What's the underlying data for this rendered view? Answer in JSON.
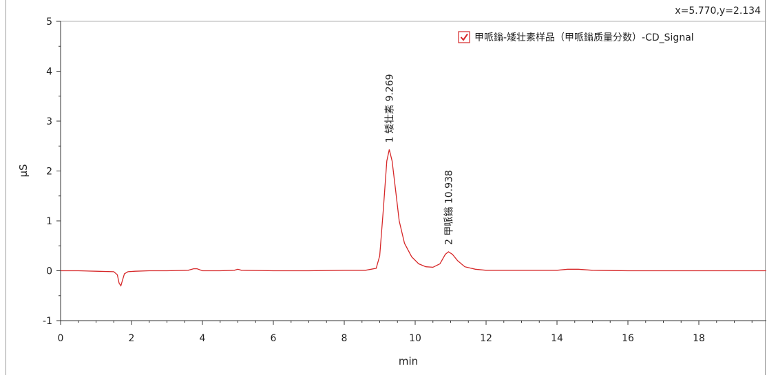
{
  "chart_data": {
    "type": "line",
    "title": "",
    "xlabel": "min",
    "ylabel": "µS",
    "xlim": [
      0,
      19.9
    ],
    "ylim": [
      -1,
      5
    ],
    "x_ticks": [
      0,
      2,
      4,
      6,
      8,
      10,
      12,
      14,
      16,
      18
    ],
    "y_ticks": [
      -1,
      0,
      1,
      2,
      3,
      4,
      5
    ],
    "x_minor_step": 0.5,
    "y_minor_step": 0.5,
    "grid": false,
    "legend": {
      "position": "top-right",
      "checked": true
    },
    "cursor_readout": "x=5.770,y=2.134",
    "series": [
      {
        "name": "甲哌鎓-矮壮素样品（甲哌鎓质量分数）-CD_Signal",
        "color": "#d62728",
        "points": [
          [
            0,
            0.0
          ],
          [
            0.5,
            0.0
          ],
          [
            1.0,
            -0.01
          ],
          [
            1.5,
            -0.02
          ],
          [
            1.6,
            -0.08
          ],
          [
            1.65,
            -0.25
          ],
          [
            1.7,
            -0.3
          ],
          [
            1.75,
            -0.18
          ],
          [
            1.8,
            -0.06
          ],
          [
            1.9,
            -0.02
          ],
          [
            2.1,
            -0.01
          ],
          [
            2.5,
            0.0
          ],
          [
            3.0,
            0.0
          ],
          [
            3.6,
            0.01
          ],
          [
            3.75,
            0.04
          ],
          [
            3.85,
            0.04
          ],
          [
            4.0,
            0.0
          ],
          [
            4.5,
            0.0
          ],
          [
            4.9,
            0.01
          ],
          [
            5.0,
            0.03
          ],
          [
            5.1,
            0.01
          ],
          [
            6.0,
            0.0
          ],
          [
            7.0,
            0.0
          ],
          [
            8.0,
            0.01
          ],
          [
            8.6,
            0.01
          ],
          [
            8.9,
            0.05
          ],
          [
            9.0,
            0.3
          ],
          [
            9.1,
            1.2
          ],
          [
            9.2,
            2.2
          ],
          [
            9.27,
            2.43
          ],
          [
            9.35,
            2.2
          ],
          [
            9.45,
            1.6
          ],
          [
            9.55,
            1.0
          ],
          [
            9.7,
            0.55
          ],
          [
            9.9,
            0.28
          ],
          [
            10.1,
            0.14
          ],
          [
            10.3,
            0.08
          ],
          [
            10.5,
            0.07
          ],
          [
            10.7,
            0.14
          ],
          [
            10.85,
            0.33
          ],
          [
            10.94,
            0.38
          ],
          [
            11.05,
            0.33
          ],
          [
            11.2,
            0.2
          ],
          [
            11.4,
            0.08
          ],
          [
            11.7,
            0.03
          ],
          [
            12.0,
            0.01
          ],
          [
            13.0,
            0.01
          ],
          [
            14.0,
            0.01
          ],
          [
            14.3,
            0.03
          ],
          [
            14.6,
            0.03
          ],
          [
            15.0,
            0.01
          ],
          [
            16.0,
            0.0
          ],
          [
            17.0,
            0.0
          ],
          [
            18.0,
            0.0
          ],
          [
            19.9,
            0.0
          ]
        ]
      }
    ],
    "annotations": [
      {
        "x": 9.269,
        "y": 2.43,
        "text": "1 矮壮素 9.269"
      },
      {
        "x": 10.938,
        "y": 0.38,
        "text": "2 甲哌鎓 10.938"
      }
    ]
  }
}
